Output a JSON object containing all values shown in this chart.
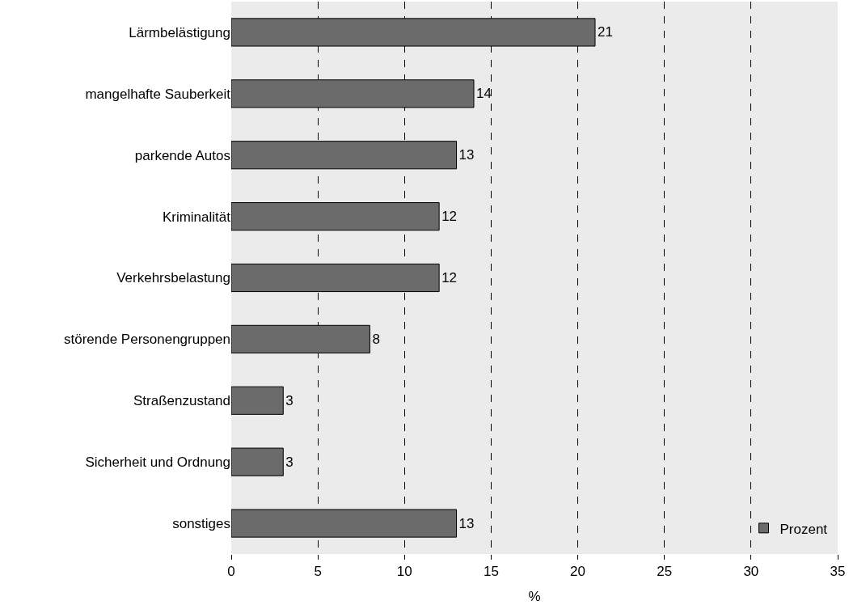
{
  "chart_data": {
    "type": "bar",
    "orientation": "horizontal",
    "xlabel": "%",
    "categories": [
      "Lärmbelästigung",
      "mangelhafte Sauberkeit",
      "parkende Autos",
      "Kriminalität",
      "Verkehrsbelastung",
      "störende Personengruppen",
      "Straßenzustand",
      "Sicherheit und Ordnung",
      "sonstiges"
    ],
    "series": [
      {
        "name": "Prozent",
        "color": "#6b6b6b",
        "values": [
          21,
          14,
          13,
          12,
          12,
          8,
          3,
          3,
          13
        ]
      }
    ],
    "xlim": [
      0,
      35
    ],
    "xticks": [
      0,
      5,
      10,
      15,
      20,
      25,
      30,
      35
    ],
    "grid": "x",
    "line_style": "dashed",
    "legend": "bottom right",
    "data_labels": true
  }
}
